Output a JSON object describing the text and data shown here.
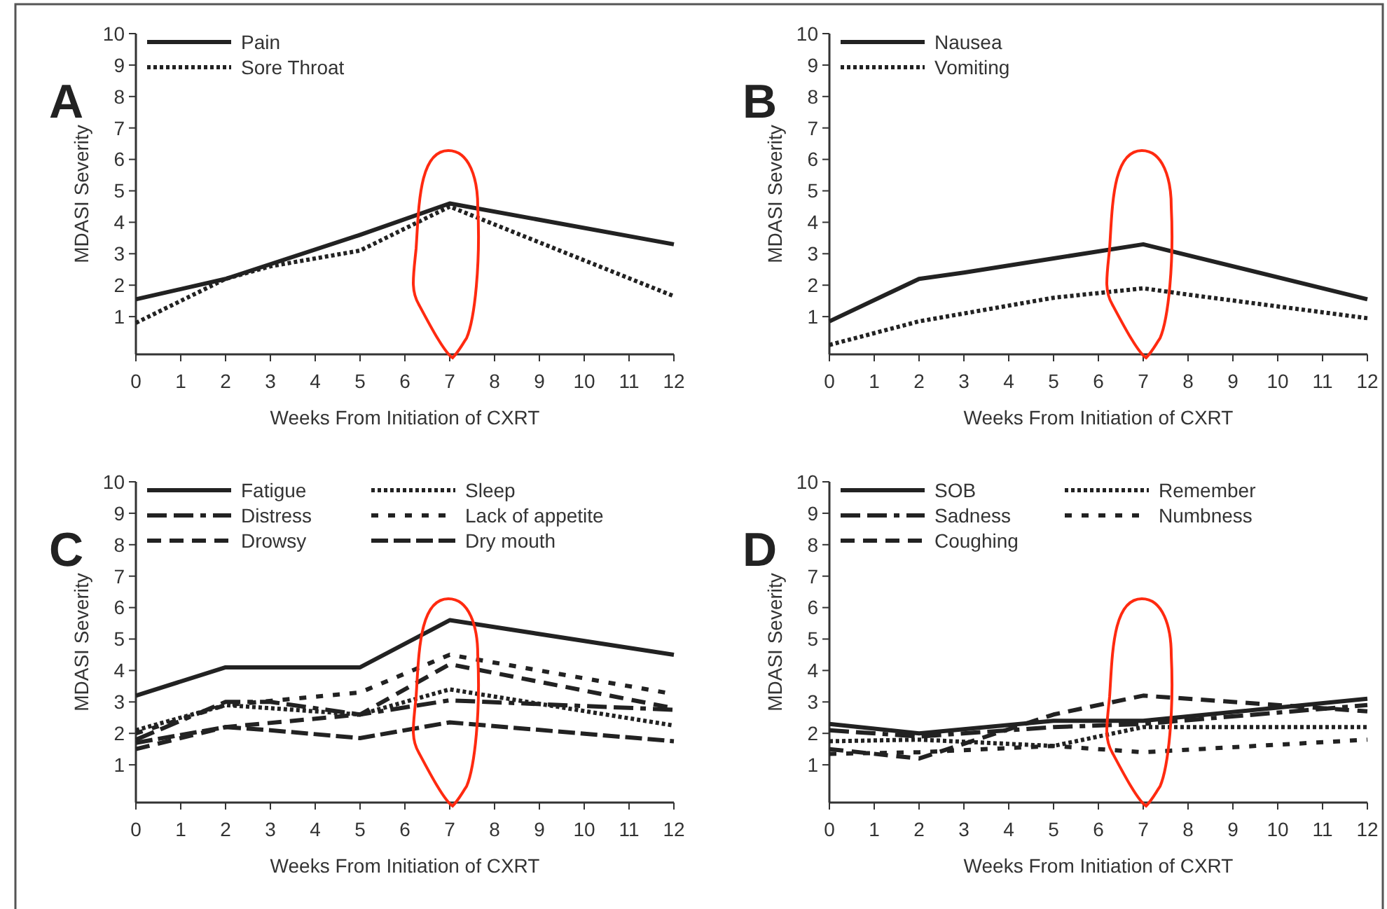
{
  "chart_data": [
    {
      "type": "line",
      "title": "A",
      "xlabel": "Weeks From Initiation of CXRT",
      "ylabel": "MDASI Severity",
      "xlim": [
        0,
        12
      ],
      "ylim": [
        -0.2,
        10
      ],
      "xticks": [
        0,
        1,
        2,
        3,
        4,
        5,
        6,
        7,
        8,
        9,
        10,
        11,
        12
      ],
      "yticks": [
        1,
        2,
        3,
        4,
        5,
        6,
        7,
        8,
        9,
        10
      ],
      "legend": "top left",
      "grid": false,
      "marker": "none",
      "series": [
        {
          "name": "Pain",
          "color": "#222222",
          "line_style": "solid",
          "x": [
            0,
            2,
            5,
            7,
            12
          ],
          "values": [
            1.55,
            2.2,
            3.6,
            4.6,
            3.3
          ]
        },
        {
          "name": "Sore Throat",
          "color": "#222222",
          "line_style": "dotted",
          "x": [
            0,
            2,
            3,
            5,
            7,
            12
          ],
          "values": [
            0.8,
            2.2,
            2.6,
            3.1,
            4.5,
            1.65
          ]
        }
      ]
    },
    {
      "type": "line",
      "title": "B",
      "xlabel": "Weeks From Initiation of CXRT",
      "ylabel": "MDASI Severity",
      "xlim": [
        0,
        12
      ],
      "ylim": [
        -0.2,
        10
      ],
      "xticks": [
        0,
        1,
        2,
        3,
        4,
        5,
        6,
        7,
        8,
        9,
        10,
        11,
        12
      ],
      "yticks": [
        1,
        2,
        3,
        4,
        5,
        6,
        7,
        8,
        9,
        10
      ],
      "legend": "top left",
      "grid": false,
      "marker": "none",
      "series": [
        {
          "name": "Nausea",
          "color": "#222222",
          "line_style": "solid",
          "x": [
            0,
            2,
            3,
            5,
            7,
            12
          ],
          "values": [
            0.85,
            2.2,
            2.4,
            2.85,
            3.3,
            1.55
          ]
        },
        {
          "name": "Vomiting",
          "color": "#222222",
          "line_style": "dotted",
          "x": [
            0,
            2,
            5,
            7,
            8,
            12
          ],
          "values": [
            0.1,
            0.85,
            1.6,
            1.9,
            1.7,
            0.95
          ]
        }
      ]
    },
    {
      "type": "line",
      "title": "C",
      "xlabel": "Weeks From Initiation of CXRT",
      "ylabel": "MDASI Severity",
      "xlim": [
        0,
        12
      ],
      "ylim": [
        -0.2,
        10
      ],
      "xticks": [
        0,
        1,
        2,
        3,
        4,
        5,
        6,
        7,
        8,
        9,
        10,
        11,
        12
      ],
      "yticks": [
        1,
        2,
        3,
        4,
        5,
        6,
        7,
        8,
        9,
        10
      ],
      "legend": "top left",
      "grid": false,
      "marker": "none",
      "series": [
        {
          "name": "Fatigue",
          "color": "#222222",
          "line_style": "solid",
          "x": [
            0,
            2,
            5,
            7,
            12
          ],
          "values": [
            3.2,
            4.1,
            4.1,
            5.6,
            4.5
          ]
        },
        {
          "name": "Distress",
          "color": "#222222",
          "line_style": "dashed",
          "x": [
            0,
            2,
            3,
            5,
            7,
            12
          ],
          "values": [
            1.8,
            3.0,
            3.0,
            2.6,
            3.05,
            2.75
          ]
        },
        {
          "name": "Drowsy",
          "color": "#222222",
          "line_style": "dashed",
          "x": [
            0,
            2,
            5,
            7,
            12
          ],
          "values": [
            1.5,
            2.2,
            2.6,
            4.2,
            2.8
          ]
        },
        {
          "name": "Sleep",
          "color": "#222222",
          "line_style": "dotted",
          "x": [
            0,
            2,
            5,
            7,
            12
          ],
          "values": [
            2.1,
            2.9,
            2.6,
            3.4,
            2.25
          ]
        },
        {
          "name": "Lack of appetite",
          "color": "#222222",
          "line_style": "dashed",
          "x": [
            0,
            2,
            5,
            7,
            12
          ],
          "values": [
            2.0,
            2.9,
            3.3,
            4.5,
            3.25
          ]
        },
        {
          "name": "Dry mouth",
          "color": "#222222",
          "line_style": "dashed",
          "x": [
            0,
            2,
            3,
            5,
            7,
            12
          ],
          "values": [
            1.7,
            2.2,
            2.1,
            1.85,
            2.35,
            1.75
          ]
        }
      ]
    },
    {
      "type": "line",
      "title": "D",
      "xlabel": "Weeks From Initiation of CXRT",
      "ylabel": "MDASI Severity",
      "xlim": [
        0,
        12
      ],
      "ylim": [
        -0.2,
        10
      ],
      "xticks": [
        0,
        1,
        2,
        3,
        4,
        5,
        6,
        7,
        8,
        9,
        10,
        11,
        12
      ],
      "yticks": [
        1,
        2,
        3,
        4,
        5,
        6,
        7,
        8,
        9,
        10
      ],
      "legend": "top left",
      "grid": false,
      "marker": "none",
      "series": [
        {
          "name": "SOB",
          "color": "#222222",
          "line_style": "solid",
          "x": [
            0,
            2,
            5,
            7,
            12
          ],
          "values": [
            2.3,
            2.0,
            2.4,
            2.4,
            3.1
          ]
        },
        {
          "name": "Sadness",
          "color": "#222222",
          "line_style": "dashed",
          "x": [
            0,
            2,
            5,
            7,
            12
          ],
          "values": [
            2.1,
            1.9,
            2.2,
            2.3,
            2.9
          ]
        },
        {
          "name": "Coughing",
          "color": "#222222",
          "line_style": "dashed",
          "x": [
            0,
            2,
            5,
            7,
            12
          ],
          "values": [
            1.5,
            1.2,
            2.6,
            3.2,
            2.7
          ]
        },
        {
          "name": "Remember",
          "color": "#222222",
          "line_style": "dotted",
          "x": [
            0,
            2,
            5,
            7,
            12
          ],
          "values": [
            1.75,
            1.8,
            1.6,
            2.2,
            2.2
          ]
        },
        {
          "name": "Numbness",
          "color": "#222222",
          "line_style": "dashed",
          "x": [
            0,
            2,
            5,
            7,
            12
          ],
          "values": [
            1.35,
            1.4,
            1.6,
            1.4,
            1.8
          ]
        }
      ]
    }
  ]
}
